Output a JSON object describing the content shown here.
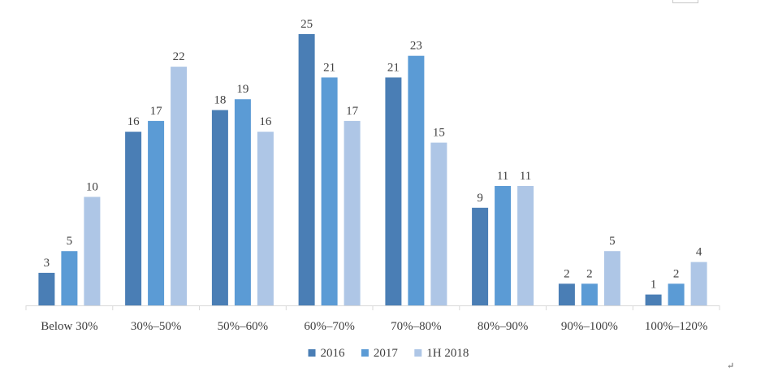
{
  "chart_data": {
    "type": "bar",
    "title": "",
    "xlabel": "",
    "ylabel": "",
    "categories": [
      "Below 30%",
      "30%–50%",
      "50%–60%",
      "60%–70%",
      "70%–80%",
      "80%–90%",
      "90%–100%",
      "100%–120%"
    ],
    "series": [
      {
        "name": "2016",
        "color": "#4a7eb5",
        "values": [
          3,
          16,
          18,
          25,
          21,
          9,
          2,
          1
        ]
      },
      {
        "name": "2017",
        "color": "#5b9bd5",
        "values": [
          5,
          17,
          19,
          21,
          23,
          11,
          2,
          2
        ]
      },
      {
        "name": "1H 2018",
        "color": "#aec6e6",
        "values": [
          10,
          22,
          16,
          17,
          15,
          11,
          5,
          4
        ]
      }
    ],
    "ylim": [
      0,
      25
    ],
    "grid": false,
    "legend_position": "bottom-center",
    "data_labels": true
  }
}
